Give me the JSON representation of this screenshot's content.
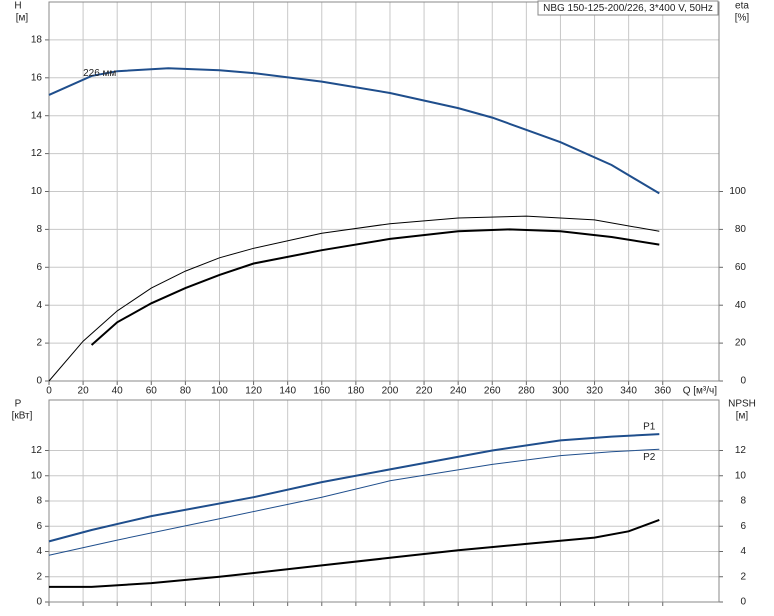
{
  "chart_data": [
    {
      "type": "line",
      "title": "NBG 150-125-200/226, 3*400 V, 50Hz",
      "ylabel": "H",
      "yunit": "[м]",
      "y2label": "eta",
      "y2unit": "[%]",
      "xlabel": "Q [м³/ч]",
      "annotation": "226 мм",
      "xlim": [
        0,
        393
      ],
      "xticks": [
        0,
        20,
        40,
        60,
        80,
        100,
        120,
        140,
        160,
        180,
        200,
        220,
        240,
        260,
        280,
        300,
        320,
        340,
        360
      ],
      "ylim": [
        0,
        20
      ],
      "yticks": [
        0,
        2,
        4,
        6,
        8,
        10,
        12,
        14,
        16,
        18
      ],
      "y2lim": [
        0,
        200
      ],
      "y2ticks": [
        0,
        20,
        40,
        60,
        80,
        100
      ],
      "grid": true,
      "series": [
        {
          "axis": "y",
          "color": "#1f4e8c",
          "line_width": 2,
          "x": [
            0,
            25,
            40,
            70,
            100,
            120,
            160,
            200,
            240,
            260,
            300,
            330,
            358
          ],
          "values": [
            15.1,
            16.1,
            16.35,
            16.5,
            16.4,
            16.25,
            15.8,
            15.2,
            14.4,
            13.9,
            12.6,
            11.4,
            9.9
          ]
        },
        {
          "axis": "y2",
          "color": "#000000",
          "line_width": 1,
          "x": [
            0,
            20,
            40,
            60,
            80,
            100,
            120,
            160,
            200,
            240,
            280,
            320,
            358
          ],
          "values": [
            0,
            21,
            37,
            49,
            58,
            65,
            70,
            78,
            83,
            86,
            87,
            85,
            79
          ]
        },
        {
          "axis": "y2",
          "color": "#000000",
          "line_width": 2,
          "x": [
            25,
            40,
            60,
            80,
            100,
            120,
            160,
            200,
            240,
            270,
            300,
            330,
            358
          ],
          "values": [
            19,
            31,
            41,
            49,
            56,
            62,
            69,
            75,
            79,
            80,
            79,
            76,
            72
          ]
        }
      ]
    },
    {
      "type": "line",
      "ylabel": "P",
      "yunit": "[кВт]",
      "y2label": "NPSH",
      "y2unit": "[м]",
      "xlim": [
        0,
        393
      ],
      "ylim": [
        0,
        16
      ],
      "yticks": [
        0,
        2,
        4,
        6,
        8,
        10,
        12
      ],
      "y2lim": [
        0,
        16
      ],
      "y2ticks": [
        0,
        2,
        4,
        6,
        8,
        10,
        12
      ],
      "grid": true,
      "series": [
        {
          "name": "P1",
          "axis": "y",
          "color": "#1f4e8c",
          "line_width": 2,
          "x": [
            0,
            25,
            60,
            120,
            160,
            200,
            260,
            300,
            330,
            358
          ],
          "values": [
            4.8,
            5.7,
            6.8,
            8.3,
            9.5,
            10.5,
            12.0,
            12.8,
            13.1,
            13.3
          ]
        },
        {
          "name": "P2",
          "axis": "y",
          "color": "#1f4e8c",
          "line_width": 1,
          "x": [
            0,
            40,
            100,
            160,
            200,
            260,
            300,
            330,
            358
          ],
          "values": [
            3.7,
            4.9,
            6.6,
            8.3,
            9.6,
            10.9,
            11.6,
            11.9,
            12.1
          ]
        },
        {
          "axis": "y2",
          "color": "#000000",
          "line_width": 2,
          "x": [
            0,
            25,
            60,
            100,
            160,
            200,
            240,
            280,
            320,
            340,
            358
          ],
          "values": [
            1.2,
            1.2,
            1.5,
            2.0,
            2.9,
            3.5,
            4.1,
            4.6,
            5.1,
            5.6,
            6.5
          ]
        }
      ]
    }
  ]
}
